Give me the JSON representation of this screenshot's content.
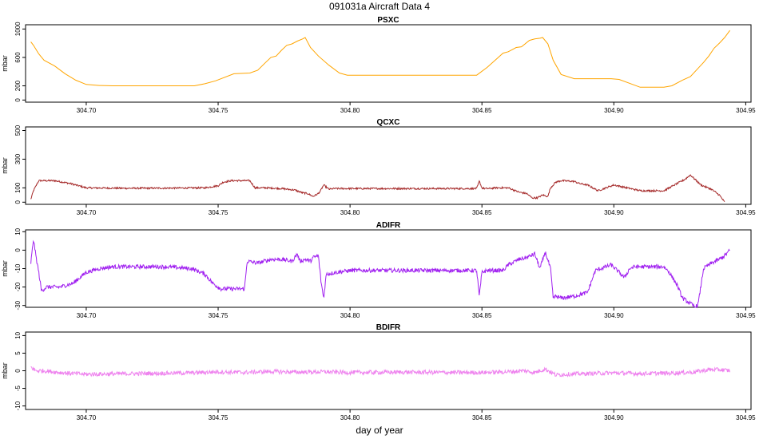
{
  "figure": {
    "title": "091031a   Aircraft Data 4",
    "xlabel": "day of year"
  },
  "chart_data": [
    {
      "type": "line",
      "title": "PSXC",
      "ylabel": "mbar",
      "xlim": [
        304.677,
        304.952
      ],
      "ylim": [
        -30,
        1060
      ],
      "yticks": [
        0,
        200,
        600,
        1000
      ],
      "xticks": [
        304.7,
        304.75,
        304.8,
        304.85,
        304.9,
        304.95
      ],
      "xtick_labels": [
        "304.70",
        "304.75",
        "304.80",
        "304.85",
        "304.90",
        "304.95"
      ],
      "color": "#FFA500",
      "noise": 0,
      "series": [
        {
          "x": [
            304.679,
            304.68,
            304.682,
            304.684,
            304.688,
            304.692,
            304.696,
            304.7,
            304.705,
            304.71,
            304.72,
            304.73,
            304.741,
            304.745,
            304.749,
            304.756,
            304.762,
            304.765,
            304.768,
            304.77,
            304.772,
            304.774,
            304.776,
            304.778,
            304.78,
            304.782,
            304.783,
            304.785,
            304.788,
            304.792,
            304.796,
            304.799,
            304.805,
            304.815,
            304.825,
            304.835,
            304.848,
            304.852,
            304.855,
            304.858,
            304.86,
            304.863,
            304.865,
            304.868,
            304.87,
            304.872,
            304.873,
            304.875,
            304.877,
            304.88,
            304.885,
            304.89,
            304.895,
            304.899,
            304.902,
            304.91,
            304.919,
            304.922,
            304.926,
            304.929,
            304.932,
            304.934,
            304.936,
            304.938,
            304.94,
            304.942,
            304.944
          ],
          "y": [
            820,
            770,
            650,
            560,
            480,
            370,
            280,
            220,
            205,
            200,
            200,
            200,
            200,
            230,
            270,
            370,
            380,
            420,
            530,
            600,
            620,
            700,
            770,
            790,
            830,
            860,
            880,
            740,
            620,
            490,
            380,
            350,
            350,
            350,
            350,
            350,
            350,
            460,
            560,
            660,
            680,
            740,
            750,
            840,
            860,
            870,
            880,
            790,
            560,
            360,
            300,
            300,
            300,
            300,
            290,
            180,
            180,
            200,
            280,
            330,
            450,
            530,
            620,
            730,
            800,
            880,
            980
          ]
        }
      ]
    },
    {
      "type": "line",
      "title": "QCXC",
      "ylabel": "mbar",
      "xlim": [
        304.677,
        304.952
      ],
      "ylim": [
        -15,
        525
      ],
      "yticks": [
        0,
        100,
        300,
        500
      ],
      "xticks": [
        304.7,
        304.75,
        304.8,
        304.85,
        304.9,
        304.95
      ],
      "xtick_labels": [
        "304.70",
        "304.75",
        "304.80",
        "304.85",
        "304.90",
        "304.95"
      ],
      "color": "#A52A2A",
      "noise": 6,
      "series": [
        {
          "x": [
            304.679,
            304.68,
            304.682,
            304.688,
            304.694,
            304.7,
            304.715,
            304.73,
            304.745,
            304.75,
            304.752,
            304.755,
            304.762,
            304.764,
            304.768,
            304.774,
            304.779,
            304.782,
            304.784,
            304.786,
            304.788,
            304.789,
            304.79,
            304.792,
            304.794,
            304.8,
            304.82,
            304.84,
            304.848,
            304.849,
            304.85,
            304.851,
            304.853,
            304.855,
            304.86,
            304.864,
            304.867,
            304.869,
            304.871,
            304.873,
            304.875,
            304.876,
            304.878,
            304.88,
            304.885,
            304.887,
            304.89,
            304.894,
            304.9,
            304.91,
            304.919,
            304.925,
            304.927,
            304.929,
            304.933,
            304.937,
            304.94,
            304.942
          ],
          "y": [
            20,
            80,
            150,
            150,
            130,
            100,
            97,
            98,
            100,
            115,
            140,
            150,
            150,
            100,
            100,
            95,
            85,
            65,
            60,
            40,
            60,
            85,
            120,
            90,
            95,
            95,
            95,
            95,
            95,
            145,
            100,
            95,
            95,
            100,
            100,
            70,
            60,
            30,
            30,
            50,
            40,
            100,
            140,
            150,
            145,
            130,
            120,
            80,
            120,
            80,
            80,
            140,
            160,
            190,
            120,
            90,
            50,
            0
          ]
        }
      ]
    },
    {
      "type": "line",
      "title": "ADIFR",
      "ylabel": "mbar",
      "xlim": [
        304.677,
        304.952
      ],
      "ylim": [
        -31,
        11
      ],
      "yticks": [
        -30,
        -20,
        -10,
        0,
        10
      ],
      "xticks": [
        304.7,
        304.75,
        304.8,
        304.85,
        304.9,
        304.95
      ],
      "xtick_labels": [
        "304.70",
        "304.75",
        "304.80",
        "304.85",
        "304.90",
        "304.95"
      ],
      "color": "#A020F0",
      "noise": 1.1,
      "series": [
        {
          "x": [
            304.679,
            304.68,
            304.681,
            304.682,
            304.683,
            304.685,
            304.69,
            304.695,
            304.7,
            304.705,
            304.71,
            304.73,
            304.74,
            304.745,
            304.748,
            304.751,
            304.755,
            304.76,
            304.761,
            304.765,
            304.77,
            304.774,
            304.778,
            304.78,
            304.781,
            304.783,
            304.785,
            304.786,
            304.788,
            304.789,
            304.79,
            304.791,
            304.795,
            304.8,
            304.82,
            304.84,
            304.848,
            304.849,
            304.85,
            304.852,
            304.858,
            304.86,
            304.864,
            304.867,
            304.87,
            304.872,
            304.874,
            304.876,
            304.877,
            304.878,
            304.88,
            304.885,
            304.89,
            304.893,
            304.895,
            304.899,
            304.902,
            304.904,
            304.906,
            304.908,
            304.912,
            304.919,
            304.921,
            304.924,
            304.926,
            304.928,
            304.93,
            304.931,
            304.932,
            304.934,
            304.937,
            304.94,
            304.942,
            304.944
          ],
          "y": [
            -7,
            6,
            -4,
            -12,
            -22,
            -20,
            -20,
            -18,
            -12,
            -10,
            -9,
            -9,
            -10,
            -13,
            -18,
            -21,
            -21,
            -21,
            -6,
            -7,
            -5,
            -5,
            -6,
            -2,
            -6,
            -5,
            -6,
            -4,
            -3,
            -17,
            -26,
            -13,
            -12,
            -11,
            -11,
            -11,
            -11,
            -25,
            -12,
            -11,
            -11,
            -8,
            -5,
            -4,
            -2,
            -10,
            -1,
            -10,
            -26,
            -25,
            -26,
            -25,
            -23,
            -11,
            -10,
            -8,
            -12,
            -15,
            -10,
            -9,
            -9,
            -9,
            -12,
            -19,
            -26,
            -28,
            -30,
            -31,
            -29,
            -10,
            -7,
            -5,
            -3,
            0
          ]
        }
      ]
    },
    {
      "type": "line",
      "title": "BDIFR",
      "ylabel": "mbar",
      "xlim": [
        304.677,
        304.952
      ],
      "ylim": [
        -11,
        11
      ],
      "yticks": [
        -10,
        -5,
        0,
        5,
        10
      ],
      "xticks": [
        304.7,
        304.75,
        304.8,
        304.85,
        304.9,
        304.95
      ],
      "xtick_labels": [
        "304.70",
        "304.75",
        "304.80",
        "304.85",
        "304.90",
        "304.95"
      ],
      "color": "#EE82EE",
      "noise": 0.6,
      "series": [
        {
          "x": [
            304.679,
            304.681,
            304.684,
            304.69,
            304.7,
            304.72,
            304.74,
            304.75,
            304.76,
            304.77,
            304.78,
            304.79,
            304.8,
            304.82,
            304.84,
            304.85,
            304.86,
            304.866,
            304.87,
            304.874,
            304.878,
            304.882,
            304.89,
            304.9,
            304.91,
            304.92,
            304.93,
            304.936,
            304.94,
            304.944
          ],
          "y": [
            1,
            0,
            0,
            -0.5,
            -1,
            -0.8,
            -0.6,
            -0.3,
            -0.5,
            -0.2,
            -0.4,
            -0.3,
            -0.5,
            -0.4,
            -0.5,
            -0.5,
            -0.3,
            0,
            -0.5,
            0.5,
            -1.2,
            -1,
            -0.8,
            -0.6,
            -0.8,
            -0.7,
            -0.4,
            0.3,
            0.3,
            0
          ]
        }
      ]
    }
  ]
}
